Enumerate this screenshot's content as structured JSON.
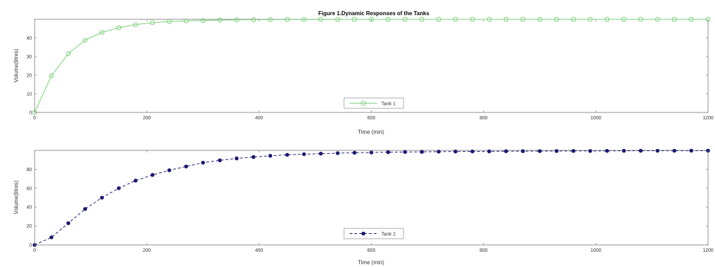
{
  "figure_title": "Figure 1.Dynamic Responses of the Tanks",
  "chart_data": [
    {
      "type": "line",
      "title": "",
      "xlabel": "Time (min)",
      "ylabel": "Volume(litres)",
      "xlim": [
        0,
        1200
      ],
      "ylim": [
        0,
        50
      ],
      "xticks": [
        "0",
        "200",
        "400",
        "600",
        "800",
        "1000",
        "1200"
      ],
      "yticks": [
        "0",
        "10",
        "20",
        "30",
        "40"
      ],
      "grid": false,
      "legend_placement": "bottom-center",
      "series": [
        {
          "name": "Tank 1",
          "color": "#7ccf7c",
          "line_style": "solid",
          "marker": "circle-open",
          "x": [
            0,
            30,
            60,
            90,
            120,
            150,
            180,
            210,
            240,
            270,
            300,
            330,
            360,
            390,
            420,
            450,
            480,
            510,
            540,
            570,
            600,
            630,
            660,
            690,
            720,
            750,
            780,
            810,
            840,
            870,
            900,
            930,
            960,
            990,
            1020,
            1050,
            1080,
            1110,
            1140,
            1170,
            1200
          ],
          "y": [
            0,
            19.7,
            31.6,
            38.8,
            43.0,
            45.5,
            47.1,
            48.2,
            48.8,
            49.2,
            49.4,
            49.6,
            49.7,
            49.8,
            49.85,
            49.9,
            49.9,
            49.95,
            49.95,
            50,
            50,
            50,
            50,
            50,
            50,
            50,
            50,
            50,
            50,
            50,
            50,
            50,
            50,
            50,
            50,
            50,
            50,
            50,
            50,
            50,
            50
          ]
        }
      ]
    },
    {
      "type": "line",
      "title": "",
      "xlabel": "Time (min)",
      "ylabel": "Volume(litres)",
      "xlim": [
        0,
        1200
      ],
      "ylim": [
        0,
        100
      ],
      "xticks": [
        "0",
        "200",
        "400",
        "600",
        "800",
        "1000",
        "1200"
      ],
      "yticks": [
        "0",
        "20",
        "40",
        "60",
        "80"
      ],
      "grid": false,
      "legend_placement": "bottom-center",
      "series": [
        {
          "name": "Tank 2",
          "color": "#1a1a70",
          "line_style": "dashed",
          "marker": "circle-filled",
          "x": [
            0,
            30,
            60,
            90,
            120,
            150,
            180,
            210,
            240,
            270,
            300,
            330,
            360,
            390,
            420,
            450,
            480,
            510,
            540,
            570,
            600,
            630,
            660,
            690,
            720,
            750,
            780,
            810,
            840,
            870,
            900,
            930,
            960,
            990,
            1020,
            1050,
            1080,
            1110,
            1140,
            1170,
            1200
          ],
          "y": [
            0,
            8,
            23,
            38,
            50,
            60,
            68,
            74,
            79,
            83,
            87,
            89.5,
            91.5,
            93,
            94.3,
            95.3,
            96,
            96.6,
            97.1,
            97.5,
            97.8,
            98.1,
            98.3,
            98.5,
            98.7,
            98.8,
            98.9,
            99,
            99.1,
            99.2,
            99.3,
            99.35,
            99.4,
            99.45,
            99.5,
            99.55,
            99.6,
            99.6,
            99.65,
            99.7,
            99.7
          ]
        }
      ]
    }
  ]
}
